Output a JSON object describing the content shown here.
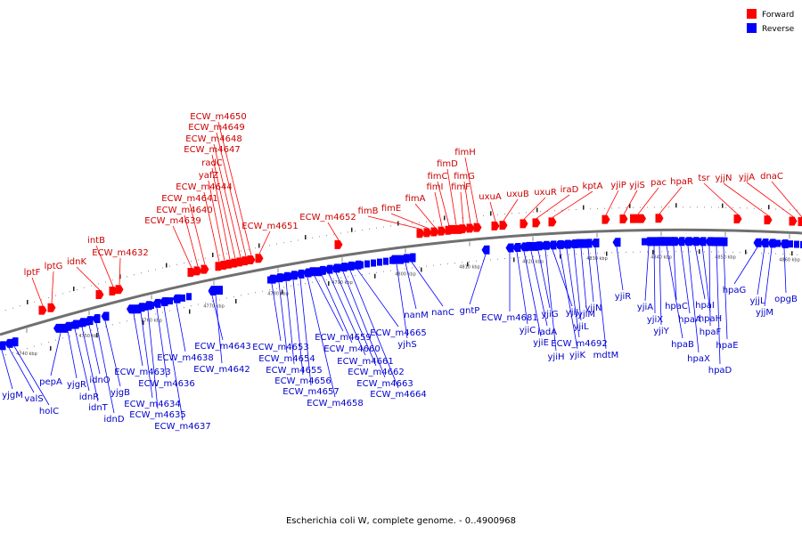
{
  "colors": {
    "forward": "#ff0000",
    "reverse": "#0000ff",
    "forward_label": "#cc0000",
    "reverse_label": "#0000cc",
    "backbone": "#707070"
  },
  "legend": {
    "forward_label": "Forward",
    "reverse_label": "Reverse"
  },
  "caption": "Escherichia coli W, complete genome. - 0..4900968",
  "ticks": [
    "4740 kbp",
    "4750 kbp",
    "4760 kbp",
    "4770 kbp",
    "4780 kbp",
    "4790 kbp",
    "4800 kbp",
    "4810 kbp",
    "4820 kbp",
    "4830 kbp",
    "4840 kbp",
    "4850 kbp",
    "4860 kbp"
  ],
  "forward_genes": [
    "lptF",
    "lptG",
    "idnK",
    "intB",
    "ECW_m4632",
    "ECW_m4639",
    "ECW_m4640",
    "ECW_m4641",
    "ECW_m4644",
    "yafZ",
    "radC",
    "ECW_m4647",
    "ECW_m4648",
    "ECW_m4649",
    "ECW_m4650",
    "ECW_m4651",
    "ECW_m4652",
    "fimB",
    "fimE",
    "fimA",
    "fimI",
    "fimC",
    "fimD",
    "fimF",
    "fimG",
    "fimH",
    "uxuA",
    "uxuB",
    "uxuR",
    "iraD",
    "kptA",
    "yjiP",
    "yjiS",
    "pac",
    "hpaR",
    "tsr",
    "yjjN",
    "yjjA",
    "dnaC"
  ],
  "reverse_genes": [
    "yjgM",
    "valS",
    "holC",
    "pepA",
    "yjgR",
    "idnR",
    "idnT",
    "idnO",
    "idnD",
    "yjgB",
    "ECW_m4633",
    "ECW_m4634",
    "ECW_m4635",
    "ECW_m4636",
    "ECW_m4637",
    "ECW_m4638",
    "ECW_m4643",
    "ECW_m4642",
    "ECW_m4653",
    "ECW_m4654",
    "ECW_m4655",
    "ECW_m4656",
    "ECW_m4657",
    "ECW_m4658",
    "ECW_m4659",
    "ECW_m4660",
    "ECW_m4661",
    "ECW_m4662",
    "ECW_m4663",
    "ECW_m4664",
    "ECW_m4665",
    "yjhS",
    "nanM",
    "nanC",
    "gntP",
    "ECW_m4681",
    "yjiC",
    "yjiE",
    "iadA",
    "yjiG",
    "yjiH",
    "yjiJ",
    "yjiK",
    "ECW_m4692",
    "yjiL",
    "yjiM",
    "yjiN",
    "mdtM",
    "yjiR",
    "yjiA",
    "yjiX",
    "yjiY",
    "hpaB",
    "hpaC",
    "hpaA",
    "hpaX",
    "hpaI",
    "hpaH",
    "hpaF",
    "hpaD",
    "hpaE",
    "hpaG",
    "yjjL",
    "yjjM",
    "opgB"
  ]
}
